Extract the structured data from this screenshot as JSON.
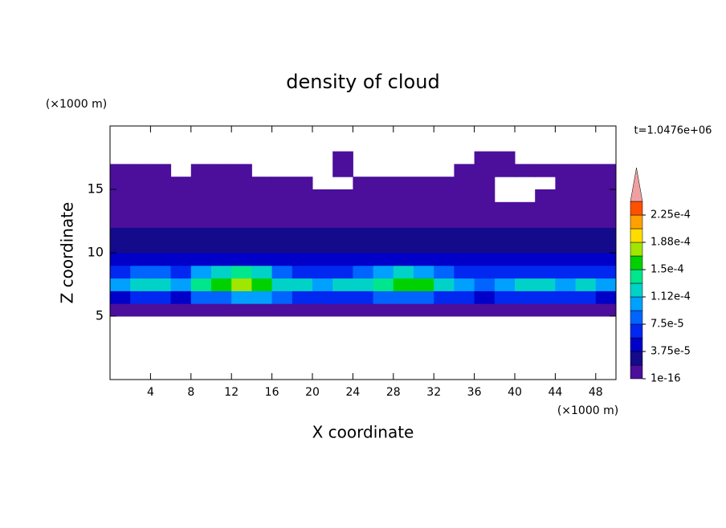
{
  "chart_data": {
    "type": "contour",
    "title": "density of cloud",
    "xlabel": "X coordinate",
    "ylabel": "Z coordinate",
    "xunit": "(×1000 m)",
    "yunit": "(×1000 m)",
    "annotation": "t=1.0476e+06",
    "xlim": [
      0,
      50
    ],
    "ylim": [
      0,
      20
    ],
    "xticks": [
      4,
      8,
      12,
      16,
      20,
      24,
      28,
      32,
      36,
      40,
      44,
      48
    ],
    "yticks": [
      5,
      10,
      15
    ],
    "x": [
      1,
      3,
      5,
      7,
      9,
      11,
      13,
      15,
      17,
      19,
      21,
      23,
      25,
      27,
      29,
      31,
      33,
      35,
      37,
      39,
      41,
      43,
      45,
      47,
      49
    ],
    "y": [
      5.5,
      6.5,
      7.5,
      8.5,
      9.5,
      10.5,
      11.5,
      12.5,
      13.5,
      14.5,
      15.5,
      16.5,
      17.5
    ],
    "z": [
      [
        1e-05,
        1e-05,
        1e-05,
        1e-05,
        1e-05,
        1e-05,
        1e-05,
        1e-05,
        1e-05,
        1e-05,
        1e-05,
        1e-05,
        1e-05,
        1e-05,
        1e-05,
        1e-05,
        1e-05,
        1e-05,
        1e-05,
        1e-05,
        1e-05,
        1e-05,
        1e-05,
        1e-05,
        1e-05
      ],
      [
        4.5e-05,
        6e-05,
        6e-05,
        4.5e-05,
        8e-05,
        8e-05,
        0.0001,
        0.0001,
        8e-05,
        6e-05,
        6e-05,
        6e-05,
        6e-05,
        8e-05,
        8e-05,
        8e-05,
        6e-05,
        6e-05,
        4.5e-05,
        6e-05,
        6e-05,
        6e-05,
        6e-05,
        6e-05,
        4.5e-05
      ],
      [
        0.0001,
        0.00012,
        0.00012,
        0.0001,
        0.00014,
        0.00016,
        0.00018,
        0.00016,
        0.00012,
        0.00012,
        0.0001,
        0.00012,
        0.00012,
        0.00014,
        0.00016,
        0.00016,
        0.00012,
        0.0001,
        8e-05,
        0.0001,
        0.00012,
        0.00012,
        0.0001,
        0.00012,
        0.0001
      ],
      [
        6e-05,
        8e-05,
        8e-05,
        6e-05,
        0.0001,
        0.00012,
        0.00014,
        0.00012,
        8e-05,
        6e-05,
        6e-05,
        6e-05,
        8e-05,
        0.0001,
        0.00012,
        0.0001,
        8e-05,
        6e-05,
        6e-05,
        6e-05,
        6e-05,
        6e-05,
        6e-05,
        6e-05,
        6e-05
      ],
      [
        4e-05,
        4e-05,
        4e-05,
        4e-05,
        4e-05,
        4e-05,
        4e-05,
        4e-05,
        4e-05,
        4e-05,
        4e-05,
        4e-05,
        4e-05,
        4e-05,
        4e-05,
        4e-05,
        4e-05,
        4e-05,
        4e-05,
        4e-05,
        4e-05,
        4e-05,
        4e-05,
        4e-05,
        4e-05
      ],
      [
        2.5e-05,
        2.5e-05,
        2.5e-05,
        2.5e-05,
        2.5e-05,
        2.5e-05,
        2.5e-05,
        2.5e-05,
        2.5e-05,
        2.5e-05,
        2.5e-05,
        2.5e-05,
        2.5e-05,
        2.5e-05,
        2.5e-05,
        2.5e-05,
        2.5e-05,
        2.5e-05,
        2.5e-05,
        2.5e-05,
        2.5e-05,
        2.5e-05,
        2.5e-05,
        2.5e-05,
        2.5e-05
      ],
      [
        2e-05,
        2e-05,
        2e-05,
        2e-05,
        2e-05,
        2e-05,
        2e-05,
        2e-05,
        2e-05,
        2e-05,
        2e-05,
        2e-05,
        2e-05,
        2e-05,
        2e-05,
        2e-05,
        2e-05,
        2e-05,
        2e-05,
        2e-05,
        2e-05,
        2e-05,
        2e-05,
        2e-05,
        2e-05
      ],
      [
        1e-05,
        1e-05,
        1e-05,
        1e-05,
        1e-05,
        1e-05,
        1e-05,
        1e-05,
        1e-05,
        1e-05,
        1e-05,
        1e-05,
        1e-05,
        1e-05,
        1e-05,
        1e-05,
        1e-05,
        1e-05,
        1e-05,
        1e-05,
        1e-05,
        1e-05,
        1e-05,
        1e-05,
        1e-05
      ],
      [
        1e-05,
        1e-05,
        1e-05,
        1e-05,
        1e-05,
        1e-05,
        1e-05,
        1e-05,
        1e-05,
        1e-05,
        1e-05,
        1e-05,
        1e-05,
        1e-05,
        1e-05,
        1e-05,
        1e-05,
        1e-05,
        1e-05,
        1e-05,
        1e-05,
        1e-05,
        1e-05,
        1e-05,
        1e-05
      ],
      [
        1e-05,
        1e-05,
        1e-05,
        1e-05,
        1e-05,
        1e-05,
        1e-05,
        1e-05,
        1e-05,
        1e-05,
        1e-05,
        1e-05,
        1e-05,
        1e-05,
        1e-05,
        1e-05,
        1e-05,
        1e-05,
        1e-05,
        null,
        null,
        1e-05,
        1e-05,
        1e-05,
        1e-05
      ],
      [
        1e-05,
        1e-05,
        1e-05,
        1e-05,
        1e-05,
        1e-05,
        1e-05,
        1e-05,
        1e-05,
        1e-05,
        null,
        null,
        1e-05,
        1e-05,
        1e-05,
        1e-05,
        1e-05,
        1e-05,
        1e-05,
        null,
        null,
        null,
        1e-05,
        1e-05,
        1e-05
      ],
      [
        1e-05,
        1e-05,
        1e-05,
        null,
        1e-05,
        1e-05,
        1e-05,
        null,
        null,
        null,
        null,
        1e-05,
        null,
        null,
        null,
        null,
        null,
        1e-05,
        1e-05,
        1e-05,
        1e-05,
        1e-05,
        1e-05,
        1e-05,
        1e-05
      ],
      [
        null,
        null,
        null,
        null,
        null,
        null,
        null,
        null,
        null,
        null,
        null,
        1e-05,
        null,
        null,
        null,
        null,
        null,
        null,
        1e-05,
        1e-05,
        null,
        null,
        null,
        null,
        null
      ]
    ],
    "colorbar": {
      "levels": [
        1e-16,
        1.875e-05,
        3.75e-05,
        5.625e-05,
        7.5e-05,
        9.375e-05,
        0.0001125,
        0.00013125,
        0.00015,
        0.00016875,
        0.0001875,
        0.00020625,
        0.000225
      ],
      "colors": [
        "#4b0f9b",
        "#140a8c",
        "#0000c8",
        "#0028f0",
        "#0064ff",
        "#00a0ff",
        "#00d2c8",
        "#00e68c",
        "#00d200",
        "#a0e600",
        "#ffdc00",
        "#ffa000",
        "#ff5000"
      ],
      "extend_color": "#f0a0a0",
      "ticks": [
        1e-16,
        {
          "value": 3.75e-05,
          "label": "3.75e-5"
        },
        {
          "value": 7.5e-05,
          "label": "7.5e-5"
        },
        {
          "value": 0.0001125,
          "label": "1.12e-4"
        },
        {
          "value": 0.00015,
          "label": "1.5e-4"
        },
        {
          "value": 0.0001875,
          "label": "1.88e-4"
        },
        {
          "value": 0.000225,
          "label": "2.25e-4"
        }
      ]
    }
  }
}
